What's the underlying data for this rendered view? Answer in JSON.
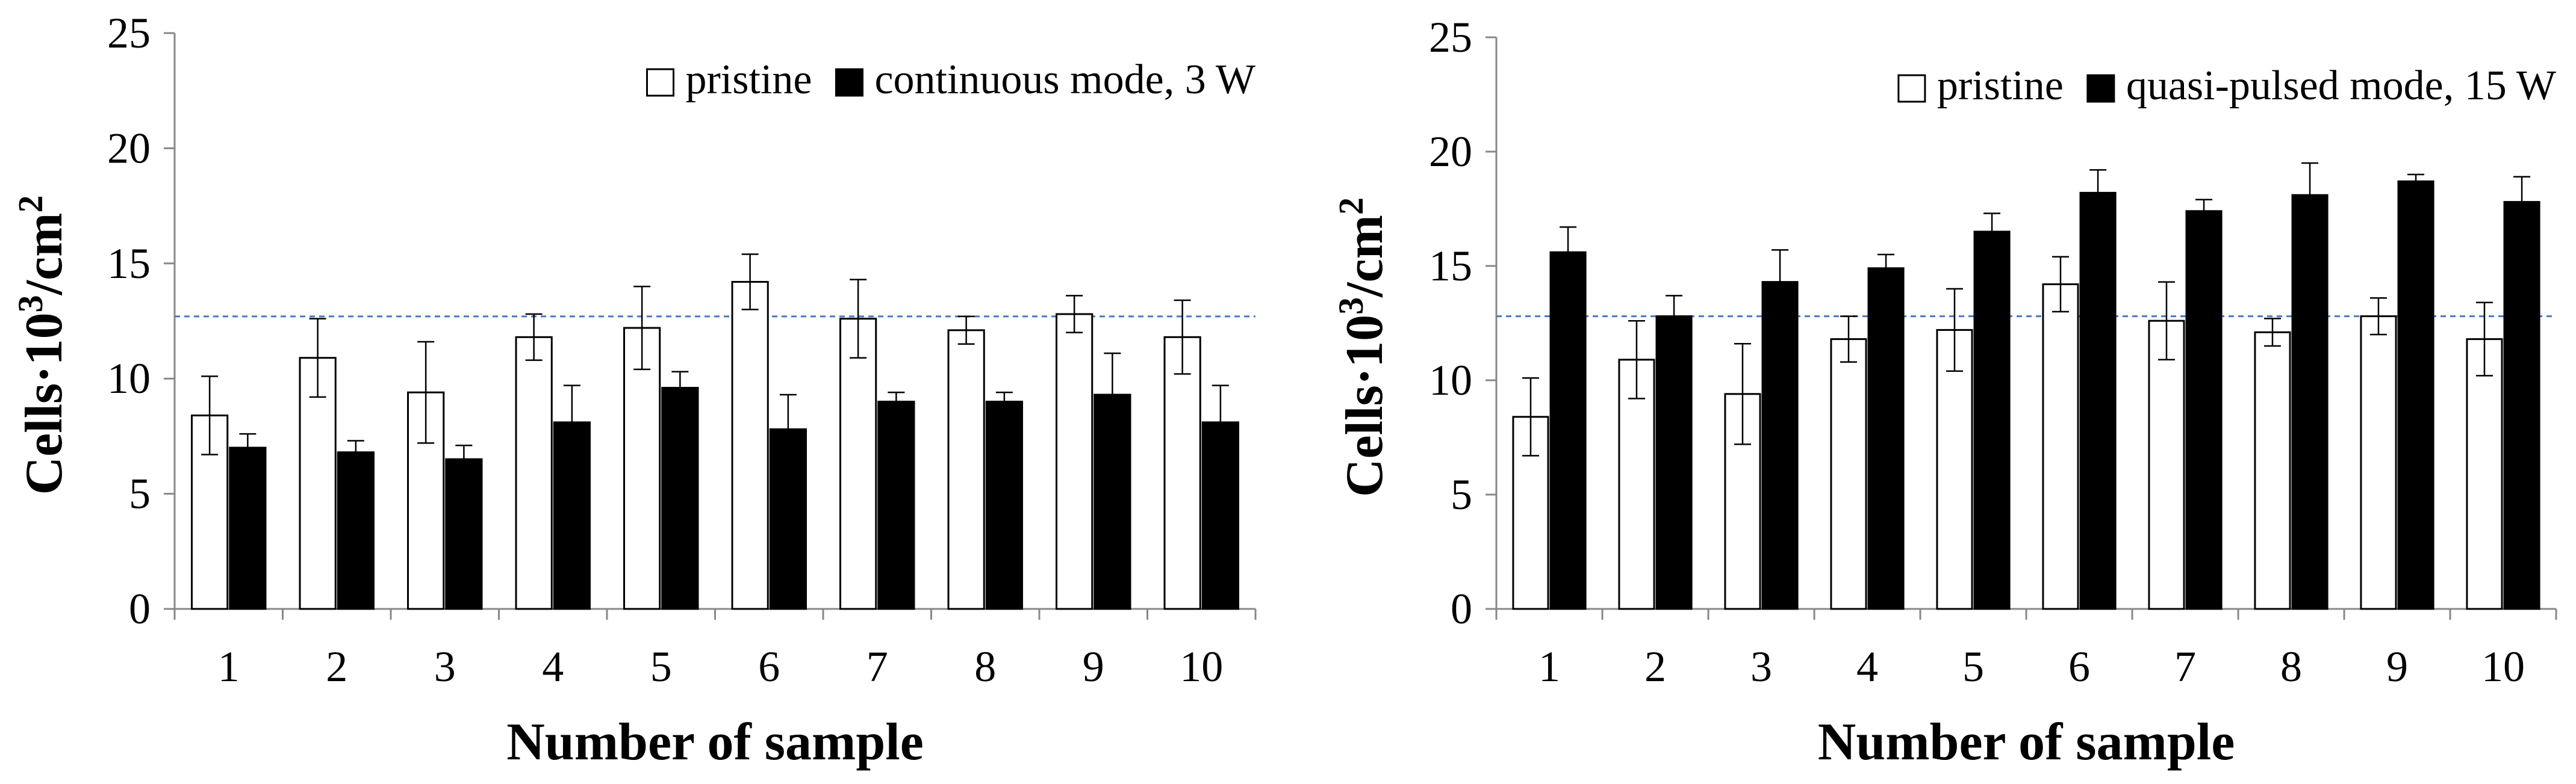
{
  "chart_data": [
    {
      "type": "bar",
      "xlabel": "Number of sample",
      "ylabel": "Cells·10³/cm²",
      "ylabel_parts": {
        "main": "Cells·10",
        "sup": "3",
        "unit": "/cm",
        "unit_sup": "2"
      },
      "ylim": [
        0,
        25
      ],
      "yticks": [
        0,
        5,
        10,
        15,
        20,
        25
      ],
      "categories": [
        "1",
        "2",
        "3",
        "4",
        "5",
        "6",
        "7",
        "8",
        "9",
        "10"
      ],
      "reference_line": 12.7,
      "legend_position": "top-right",
      "series": [
        {
          "name": "pristine",
          "fill": "#ffffff",
          "values": [
            8.4,
            10.9,
            9.4,
            11.8,
            12.2,
            14.2,
            12.6,
            12.1,
            12.8,
            11.8
          ],
          "errors": [
            1.7,
            1.7,
            2.2,
            1.0,
            1.8,
            1.2,
            1.7,
            0.6,
            0.8,
            1.6
          ]
        },
        {
          "name": "continuous mode, 3 W",
          "fill": "#000000",
          "values": [
            7.0,
            6.8,
            6.5,
            8.1,
            9.6,
            7.8,
            9.0,
            9.0,
            9.3,
            8.1
          ],
          "errors": [
            0.6,
            0.5,
            0.6,
            1.6,
            0.7,
            1.5,
            0.4,
            0.4,
            1.8,
            1.6
          ]
        }
      ]
    },
    {
      "type": "bar",
      "xlabel": "Number of sample",
      "ylabel": "Cells·10³/cm²",
      "ylabel_parts": {
        "main": "Cells·10",
        "sup": "3",
        "unit": "/cm",
        "unit_sup": "2"
      },
      "ylim": [
        0,
        25
      ],
      "yticks": [
        0,
        5,
        10,
        15,
        20,
        25
      ],
      "categories": [
        "1",
        "2",
        "3",
        "4",
        "5",
        "6",
        "7",
        "8",
        "9",
        "10"
      ],
      "reference_line": 12.8,
      "legend_position": "top-right",
      "series": [
        {
          "name": "pristine",
          "fill": "#ffffff",
          "values": [
            8.4,
            10.9,
            9.4,
            11.8,
            12.2,
            14.2,
            12.6,
            12.1,
            12.8,
            11.8
          ],
          "errors": [
            1.7,
            1.7,
            2.2,
            1.0,
            1.8,
            1.2,
            1.7,
            0.6,
            0.8,
            1.6
          ]
        },
        {
          "name": "quasi-pulsed mode, 15 W",
          "fill": "#000000",
          "values": [
            15.6,
            12.8,
            14.3,
            14.9,
            16.5,
            18.2,
            17.4,
            18.1,
            18.7,
            17.8
          ],
          "errors": [
            1.1,
            0.9,
            1.4,
            0.6,
            0.8,
            1.0,
            0.5,
            1.4,
            0.3,
            1.1
          ]
        }
      ]
    }
  ],
  "colors": {
    "reference_line": "#4a78c8",
    "axis": "#888888",
    "bar_stroke": "#000000"
  }
}
